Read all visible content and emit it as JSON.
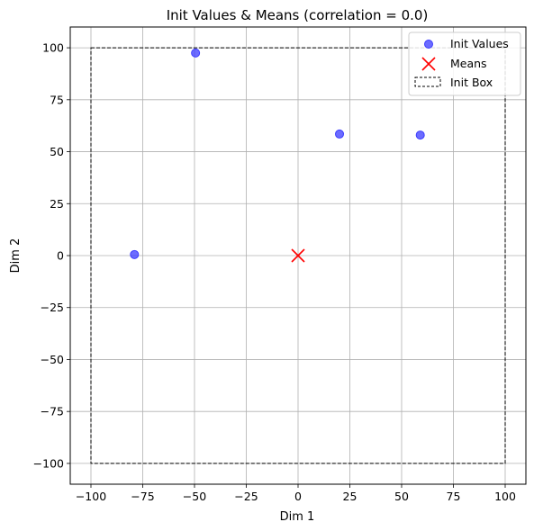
{
  "chart_data": {
    "type": "scatter",
    "title": "Init Values & Means (correlation = 0.0)",
    "xlabel": "Dim 1",
    "ylabel": "Dim 2",
    "xlim": [
      -110,
      110
    ],
    "ylim": [
      -110,
      110
    ],
    "xticks": [
      -100,
      -75,
      -50,
      -25,
      0,
      25,
      50,
      75,
      100
    ],
    "yticks": [
      -100,
      -75,
      -50,
      -25,
      0,
      25,
      50,
      75,
      100
    ],
    "grid": true,
    "legend_position": "top-right",
    "series": [
      {
        "name": "Init Values",
        "marker": "circle",
        "color": "#3b3bff",
        "points": [
          [
            -49.5,
            97.5
          ],
          [
            20,
            58.5
          ],
          [
            59,
            58
          ],
          [
            -79,
            0.5
          ]
        ]
      },
      {
        "name": "Means",
        "marker": "x",
        "color": "#ff0000",
        "points": [
          [
            0,
            0
          ]
        ]
      }
    ],
    "box": {
      "name": "Init Box",
      "x": [
        -100,
        100
      ],
      "y": [
        -100,
        100
      ],
      "style": "dashed",
      "color": "#000000"
    }
  }
}
